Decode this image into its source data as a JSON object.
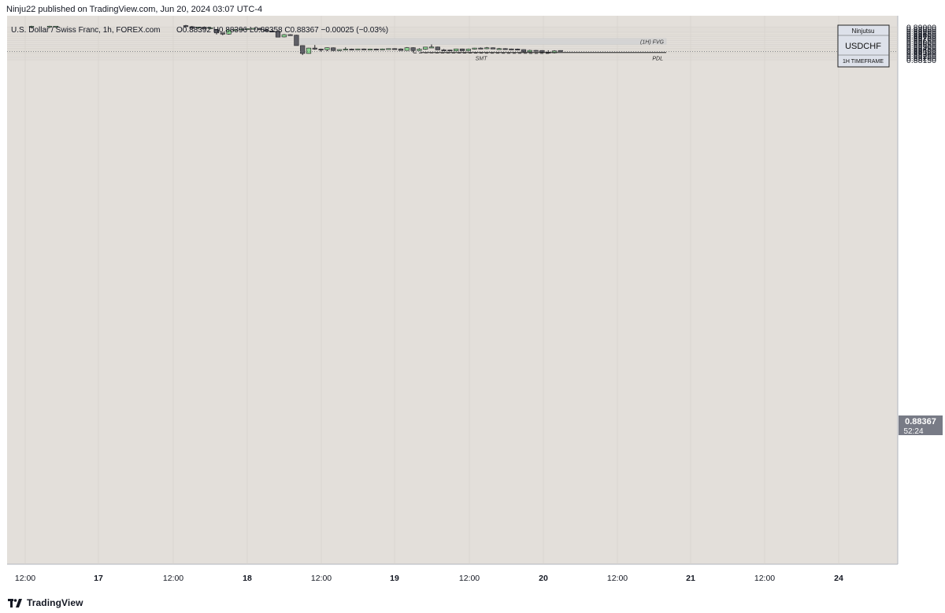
{
  "header": {
    "published_line": "Ninju22 published on TradingView.com, Jun 20, 2024 03:07 UTC-4"
  },
  "legend": {
    "symbol_line": "U.S. Dollar / Swiss Franc, 1h, FOREX.com",
    "ohlc": "O0.88392  H0.88396  L0.88358  C0.88367  −0.00025 (−0.03%)"
  },
  "badge": {
    "author": "Ninjutsu",
    "symbol": "USDCHF",
    "timeframe": "1H TIMEFRAME"
  },
  "price_label": {
    "price": "0.88367",
    "countdown": "52:24"
  },
  "footer": {
    "brand": "TradingView"
  },
  "colors": {
    "chart_bg": "#e3dfda",
    "bull_candle": "#8fd694",
    "bear_candle": "#5f5f66",
    "fvg_zone": "#d3d3d3",
    "price_badge": "#787b86"
  },
  "chart_data": {
    "type": "candlestick",
    "y_axis": {
      "min": 0.8812,
      "max": 0.8902,
      "ticks": [
        "0.89000",
        "0.88950",
        "0.88900",
        "0.88850",
        "0.88800",
        "0.88750",
        "0.88700",
        "0.88650",
        "0.88600",
        "0.88550",
        "0.88500",
        "0.88450",
        "0.88400",
        "0.88350",
        "0.88300",
        "0.88250",
        "0.88200",
        "0.88150"
      ]
    },
    "x_axis": {
      "ticks": [
        {
          "label": "12:00",
          "bold": false
        },
        {
          "label": "17",
          "bold": true
        },
        {
          "label": "12:00",
          "bold": false
        },
        {
          "label": "18",
          "bold": true
        },
        {
          "label": "12:00",
          "bold": false
        },
        {
          "label": "19",
          "bold": true
        },
        {
          "label": "12:00",
          "bold": false
        },
        {
          "label": "20",
          "bold": true
        },
        {
          "label": "12:00",
          "bold": false
        },
        {
          "label": "21",
          "bold": true
        },
        {
          "label": "12:00",
          "bold": false
        },
        {
          "label": "24",
          "bold": true
        }
      ]
    },
    "candles": [
      {
        "o": 0.89008,
        "h": 0.89035,
        "l": 0.88965,
        "c": 0.89022
      },
      {
        "o": 0.8902,
        "h": 0.89035,
        "l": 0.88978,
        "c": 0.89025
      },
      {
        "o": 0.89015,
        "h": 0.8903,
        "l": 0.88985,
        "c": 0.89025
      },
      {
        "o": 0.8904,
        "h": 0.8906,
        "l": 0.89,
        "c": 0.89012
      },
      {
        "o": 0.89012,
        "h": 0.8903,
        "l": 0.88968,
        "c": 0.8897
      },
      {
        "o": 0.8899,
        "h": 0.8901,
        "l": 0.8894,
        "c": 0.89
      },
      {
        "o": 0.89,
        "h": 0.89015,
        "l": 0.88955,
        "c": 0.8896
      },
      {
        "o": 0.8896,
        "h": 0.8901,
        "l": 0.88955,
        "c": 0.88985
      },
      {
        "o": 0.8893,
        "h": 0.88935,
        "l": 0.8881,
        "c": 0.8885
      },
      {
        "o": 0.8885,
        "h": 0.8886,
        "l": 0.8879,
        "c": 0.8882
      },
      {
        "o": 0.8882,
        "h": 0.8894,
        "l": 0.88805,
        "c": 0.8893
      },
      {
        "o": 0.8893,
        "h": 0.88945,
        "l": 0.8891,
        "c": 0.88938
      },
      {
        "o": 0.88938,
        "h": 0.88965,
        "l": 0.88925,
        "c": 0.8895
      },
      {
        "o": 0.8895,
        "h": 0.88968,
        "l": 0.8893,
        "c": 0.88962
      },
      {
        "o": 0.88962,
        "h": 0.88975,
        "l": 0.8894,
        "c": 0.8897
      },
      {
        "o": 0.8897,
        "h": 0.8898,
        "l": 0.8893,
        "c": 0.88932
      },
      {
        "o": 0.88932,
        "h": 0.8895,
        "l": 0.88885,
        "c": 0.88898
      },
      {
        "o": 0.88898,
        "h": 0.88915,
        "l": 0.88875,
        "c": 0.88892
      },
      {
        "o": 0.8889,
        "h": 0.889,
        "l": 0.88735,
        "c": 0.8874
      },
      {
        "o": 0.88745,
        "h": 0.8882,
        "l": 0.88735,
        "c": 0.88805
      },
      {
        "o": 0.88805,
        "h": 0.88815,
        "l": 0.88775,
        "c": 0.8879
      },
      {
        "o": 0.8879,
        "h": 0.888,
        "l": 0.8852,
        "c": 0.8852
      },
      {
        "o": 0.8852,
        "h": 0.88525,
        "l": 0.88275,
        "c": 0.88315
      },
      {
        "o": 0.88315,
        "h": 0.88462,
        "l": 0.8831,
        "c": 0.88455
      },
      {
        "o": 0.88455,
        "h": 0.88535,
        "l": 0.8841,
        "c": 0.88428
      },
      {
        "o": 0.88428,
        "h": 0.8844,
        "l": 0.88362,
        "c": 0.88412
      },
      {
        "o": 0.88412,
        "h": 0.88472,
        "l": 0.88375,
        "c": 0.88465
      },
      {
        "o": 0.88462,
        "h": 0.88472,
        "l": 0.8838,
        "c": 0.8839
      },
      {
        "o": 0.8839,
        "h": 0.8842,
        "l": 0.8838,
        "c": 0.88415
      },
      {
        "o": 0.88415,
        "h": 0.88475,
        "l": 0.88398,
        "c": 0.88428
      },
      {
        "o": 0.88428,
        "h": 0.8844,
        "l": 0.8841,
        "c": 0.8842
      },
      {
        "o": 0.8842,
        "h": 0.88438,
        "l": 0.88412,
        "c": 0.88432
      },
      {
        "o": 0.88432,
        "h": 0.88442,
        "l": 0.88415,
        "c": 0.8842
      },
      {
        "o": 0.8842,
        "h": 0.8844,
        "l": 0.88415,
        "c": 0.8843
      },
      {
        "o": 0.8843,
        "h": 0.8844,
        "l": 0.8841,
        "c": 0.88415
      },
      {
        "o": 0.88415,
        "h": 0.8844,
        "l": 0.88408,
        "c": 0.88432
      },
      {
        "o": 0.88432,
        "h": 0.88445,
        "l": 0.8842,
        "c": 0.8844
      },
      {
        "o": 0.8844,
        "h": 0.8845,
        "l": 0.88428,
        "c": 0.88432
      },
      {
        "o": 0.88432,
        "h": 0.88448,
        "l": 0.88388,
        "c": 0.88392
      },
      {
        "o": 0.88392,
        "h": 0.8848,
        "l": 0.88385,
        "c": 0.88465
      },
      {
        "o": 0.88465,
        "h": 0.88475,
        "l": 0.88338,
        "c": 0.8839
      },
      {
        "o": 0.8839,
        "h": 0.8845,
        "l": 0.8838,
        "c": 0.88425
      },
      {
        "o": 0.88425,
        "h": 0.88488,
        "l": 0.8841,
        "c": 0.8848
      },
      {
        "o": 0.8848,
        "h": 0.88548,
        "l": 0.88468,
        "c": 0.88482
      },
      {
        "o": 0.88482,
        "h": 0.88492,
        "l": 0.88402,
        "c": 0.88408
      },
      {
        "o": 0.88408,
        "h": 0.88428,
        "l": 0.88392,
        "c": 0.88405
      },
      {
        "o": 0.88405,
        "h": 0.88412,
        "l": 0.88375,
        "c": 0.88382
      },
      {
        "o": 0.88382,
        "h": 0.88438,
        "l": 0.88378,
        "c": 0.88432
      },
      {
        "o": 0.88432,
        "h": 0.88438,
        "l": 0.88382,
        "c": 0.88385
      },
      {
        "o": 0.88385,
        "h": 0.8844,
        "l": 0.88375,
        "c": 0.88428
      },
      {
        "o": 0.88428,
        "h": 0.8846,
        "l": 0.8842,
        "c": 0.88455
      },
      {
        "o": 0.88455,
        "h": 0.8847,
        "l": 0.8843,
        "c": 0.8844
      },
      {
        "o": 0.8844,
        "h": 0.88482,
        "l": 0.88428,
        "c": 0.88462
      },
      {
        "o": 0.88462,
        "h": 0.88472,
        "l": 0.88425,
        "c": 0.88432
      },
      {
        "o": 0.88432,
        "h": 0.88458,
        "l": 0.88425,
        "c": 0.8844
      },
      {
        "o": 0.8844,
        "h": 0.8845,
        "l": 0.8842,
        "c": 0.88432
      },
      {
        "o": 0.88432,
        "h": 0.8844,
        "l": 0.88408,
        "c": 0.88428
      },
      {
        "o": 0.88428,
        "h": 0.8844,
        "l": 0.88395,
        "c": 0.88415
      },
      {
        "o": 0.88415,
        "h": 0.8842,
        "l": 0.88348,
        "c": 0.88358
      },
      {
        "o": 0.88358,
        "h": 0.88412,
        "l": 0.8835,
        "c": 0.88395
      },
      {
        "o": 0.88395,
        "h": 0.88405,
        "l": 0.88385,
        "c": 0.88392
      },
      {
        "o": 0.88392,
        "h": 0.88398,
        "l": 0.88345,
        "c": 0.8835
      },
      {
        "o": 0.8835,
        "h": 0.88398,
        "l": 0.8832,
        "c": 0.88332
      },
      {
        "o": 0.88332,
        "h": 0.88398,
        "l": 0.88315,
        "c": 0.8838
      },
      {
        "o": 0.88392,
        "h": 0.88396,
        "l": 0.88358,
        "c": 0.88367
      }
    ],
    "fvg_zone": {
      "label": "(1H) FVG",
      "top": 0.88708,
      "bottom": 0.8855
    },
    "pdl_line": {
      "label": "PDL",
      "price": 0.8834
    },
    "smt_line": {
      "label": "SMT",
      "from_price": 0.8833,
      "to_price": 0.88315
    },
    "current_price": 0.88367
  }
}
